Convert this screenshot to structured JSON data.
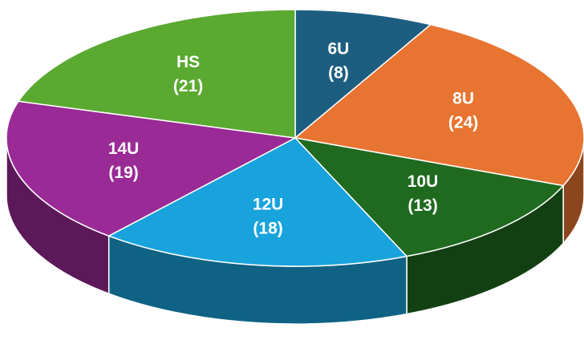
{
  "chart_data": {
    "type": "pie",
    "categories": [
      "6U",
      "8U",
      "10U",
      "12U",
      "14U",
      "HS"
    ],
    "values": [
      8,
      24,
      13,
      18,
      19,
      21
    ],
    "value_labels": [
      "(8)",
      "(24)",
      "(13)",
      "(18)",
      "(19)",
      "(21)"
    ],
    "colors": [
      "#1d5e80",
      "#e87431",
      "#1f6a1f",
      "#19a3dc",
      "#9a2a95",
      "#5aa931"
    ]
  }
}
